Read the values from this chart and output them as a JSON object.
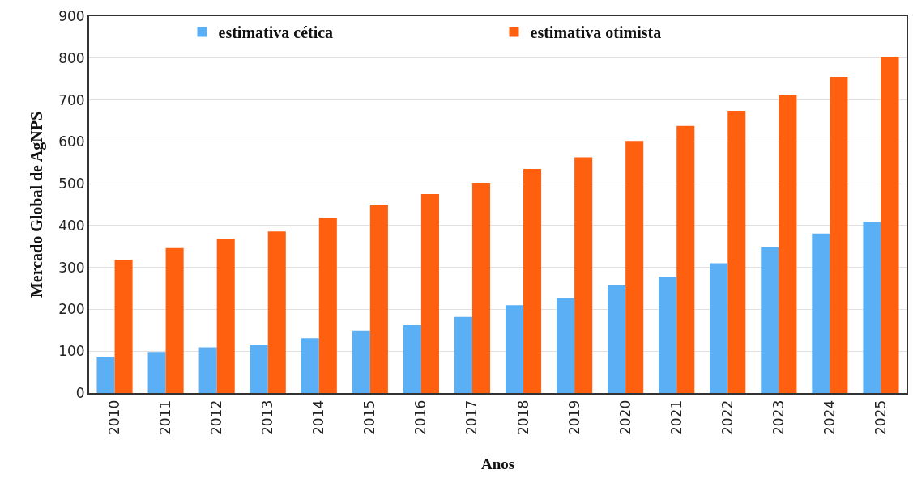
{
  "chart_data": {
    "type": "bar",
    "xlabel": "Anos",
    "ylabel": "Mercado Global de AgNPS",
    "categories": [
      "2010",
      "2011",
      "2012",
      "2013",
      "2014",
      "2015",
      "2016",
      "2017",
      "2018",
      "2019",
      "2020",
      "2021",
      "2022",
      "2023",
      "2024",
      "2025"
    ],
    "series": [
      {
        "name": "estimativa cética",
        "color": "#5aaff5",
        "values": [
          87,
          98,
          109,
          116,
          131,
          149,
          162,
          182,
          210,
          227,
          257,
          277,
          310,
          348,
          381,
          409
        ]
      },
      {
        "name": "estimativa otimista",
        "color": "#ff6010",
        "values": [
          318,
          346,
          368,
          386,
          418,
          450,
          475,
          502,
          535,
          563,
          602,
          638,
          674,
          712,
          755,
          803
        ]
      }
    ],
    "ylim": [
      0,
      900
    ],
    "yticks": [
      0,
      100,
      200,
      300,
      400,
      500,
      600,
      700,
      800,
      900
    ],
    "grid": "y",
    "legend": "top"
  }
}
